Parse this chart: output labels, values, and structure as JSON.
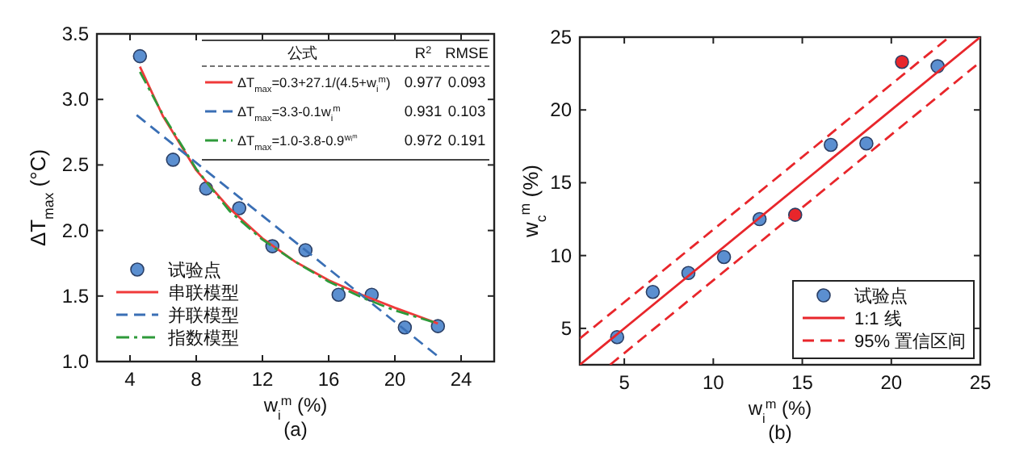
{
  "chart_data": [
    {
      "type": "scatter",
      "xlabel": "w$_{i}$$^{m}$ (%)",
      "ylabel": "ΔT$_{max}$ (°C)",
      "subtitle": "(a)",
      "xlim": [
        2,
        26
      ],
      "ylim": [
        1,
        3.5
      ],
      "xticks": [
        4,
        8,
        12,
        16,
        20,
        24
      ],
      "yticks": [
        {
          "value": 1,
          "label": "1.0"
        },
        1.5,
        {
          "value": 2,
          "label": "2.0"
        },
        2.5,
        {
          "value": 3,
          "label": "3.0"
        },
        3.5
      ],
      "grid": false,
      "legend": "bottom left",
      "annotations": [
        "公式",
        "R$^{2}$",
        "RMSE",
        "ΔT$_{max}$=0.3+27.1/(4.5+w$_{i}$$^{m}$)",
        "0.977",
        "0.093",
        "ΔT$_{max}$=3.3-0.1w$_{i}$$^{m}$",
        "0.931",
        "0.103",
        "ΔT$_{max}$=1.0-3.8-0.9$^{wᵢᵐ}$",
        "0.972",
        "0.191"
      ],
      "series": [
        {
          "name": "试验点",
          "type": "scatter",
          "marker": "circle",
          "color": "#5b8fd0",
          "x": [
            4.6,
            6.6,
            8.6,
            10.6,
            12.6,
            14.6,
            16.6,
            18.6,
            20.6,
            22.6
          ],
          "values": [
            3.33,
            2.54,
            2.32,
            2.17,
            1.88,
            1.85,
            1.51,
            1.51,
            1.26,
            1.27
          ]
        },
        {
          "name": "串联模型",
          "type": "line",
          "line_style": "solid",
          "color": "#f03a3a",
          "x": [
            4.6,
            6,
            8,
            10,
            12,
            14,
            16,
            18,
            20,
            22.6
          ],
          "values": [
            3.25,
            2.87,
            2.46,
            2.17,
            1.94,
            1.76,
            1.62,
            1.51,
            1.41,
            1.29
          ]
        },
        {
          "name": "并联模型",
          "type": "line",
          "line_style": "dashed",
          "color": "#3a6fb5",
          "x": [
            4.4,
            22.6
          ],
          "values": [
            2.88,
            1.04
          ]
        },
        {
          "name": "指数模型",
          "type": "line",
          "line_style": "dashdot",
          "color": "#2e9a3a",
          "x": [
            4.6,
            6,
            8,
            10,
            12,
            14,
            16,
            18,
            20,
            22.6
          ],
          "values": [
            3.21,
            2.88,
            2.47,
            2.15,
            1.93,
            1.76,
            1.61,
            1.49,
            1.39,
            1.29
          ]
        }
      ]
    },
    {
      "type": "scatter",
      "xlabel": "w$_{i}$$^{m}$ (%)",
      "ylabel": "w$_{c}$$^{m}$ (%)",
      "subtitle": "(b)",
      "xlim": [
        2.5,
        25
      ],
      "ylim": [
        2.5,
        25
      ],
      "xticks": [
        5,
        10,
        15,
        20,
        25
      ],
      "yticks": [
        5,
        10,
        15,
        20,
        25
      ],
      "grid": false,
      "legend": "bottom right",
      "series": [
        {
          "name": "试验点",
          "type": "scatter",
          "marker": "circle",
          "color": "#5b8fd0",
          "colors": [
            "#5b8fd0",
            "#5b8fd0",
            "#5b8fd0",
            "#5b8fd0",
            "#5b8fd0",
            "#e8262b",
            "#5b8fd0",
            "#5b8fd0",
            "#e8262b",
            "#5b8fd0"
          ],
          "x": [
            4.6,
            6.6,
            8.6,
            10.6,
            12.6,
            14.6,
            16.6,
            18.6,
            20.6,
            22.6
          ],
          "values": [
            4.4,
            7.5,
            8.8,
            9.9,
            12.5,
            12.8,
            17.6,
            17.7,
            23.3,
            23.0
          ]
        },
        {
          "name": "1:1 线",
          "type": "line",
          "line_style": "solid",
          "color": "#e8262b",
          "x": [
            2.5,
            25
          ],
          "values": [
            2.5,
            25
          ]
        },
        {
          "name": "95% 置信区间",
          "type": "line",
          "line_style": "dashed",
          "color": "#e8262b",
          "x": [
            2.5,
            23.25
          ],
          "values": [
            4.3,
            25
          ]
        },
        {
          "type": "line",
          "line_style": "dashed",
          "color": "#e8262b",
          "x": [
            4.2,
            25
          ],
          "values": [
            2.5,
            23.3
          ]
        }
      ]
    }
  ]
}
